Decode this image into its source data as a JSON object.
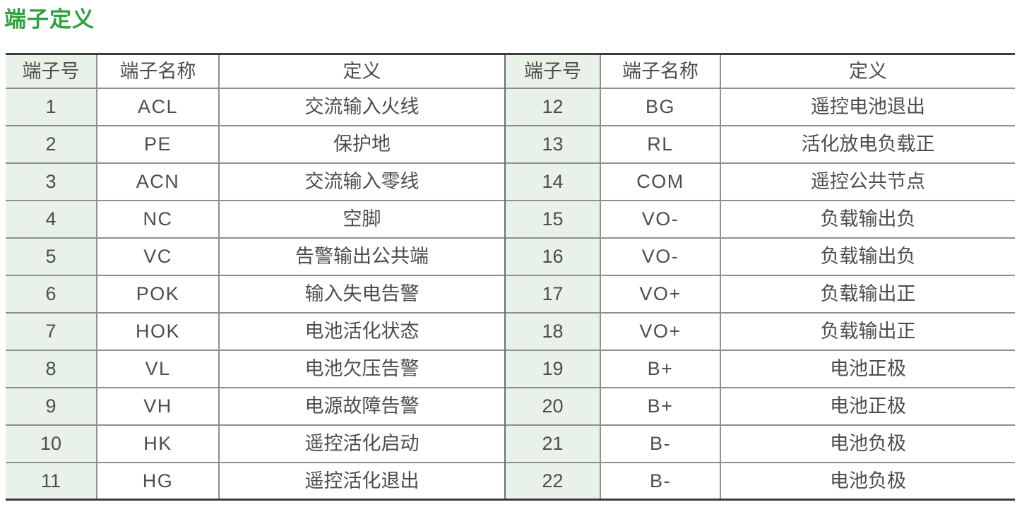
{
  "page": {
    "title": "端子定义"
  },
  "colors": {
    "title_green": "#2fa13c",
    "cell_green": "#e9f2e8",
    "border_thin": "#8f8f8f",
    "border_thick": "#3c3c3c",
    "text": "#4d4d4d"
  },
  "table": {
    "headers": [
      "端子号",
      "端子名称",
      "定义",
      "端子号",
      "端子名称",
      "定义"
    ],
    "rows": [
      [
        "1",
        "ACL",
        "交流输入火线",
        "12",
        "BG",
        "遥控电池退出"
      ],
      [
        "2",
        "PE",
        "保护地",
        "13",
        "RL",
        "活化放电负载正"
      ],
      [
        "3",
        "ACN",
        "交流输入零线",
        "14",
        "COM",
        "遥控公共节点"
      ],
      [
        "4",
        "NC",
        "空脚",
        "15",
        "VO-",
        "负载输出负"
      ],
      [
        "5",
        "VC",
        "告警输出公共端",
        "16",
        "VO-",
        "负载输出负"
      ],
      [
        "6",
        "POK",
        "输入失电告警",
        "17",
        "VO+",
        "负载输出正"
      ],
      [
        "7",
        "HOK",
        "电池活化状态",
        "18",
        "VO+",
        "负载输出正"
      ],
      [
        "8",
        "VL",
        "电池欠压告警",
        "19",
        "B+",
        "电池正极"
      ],
      [
        "9",
        "VH",
        "电源故障告警",
        "20",
        "B+",
        "电池正极"
      ],
      [
        "10",
        "HK",
        "遥控活化启动",
        "21",
        "B-",
        "电池负极"
      ],
      [
        "11",
        "HG",
        "遥控活化退出",
        "22",
        "B-",
        "电池负极"
      ]
    ]
  }
}
